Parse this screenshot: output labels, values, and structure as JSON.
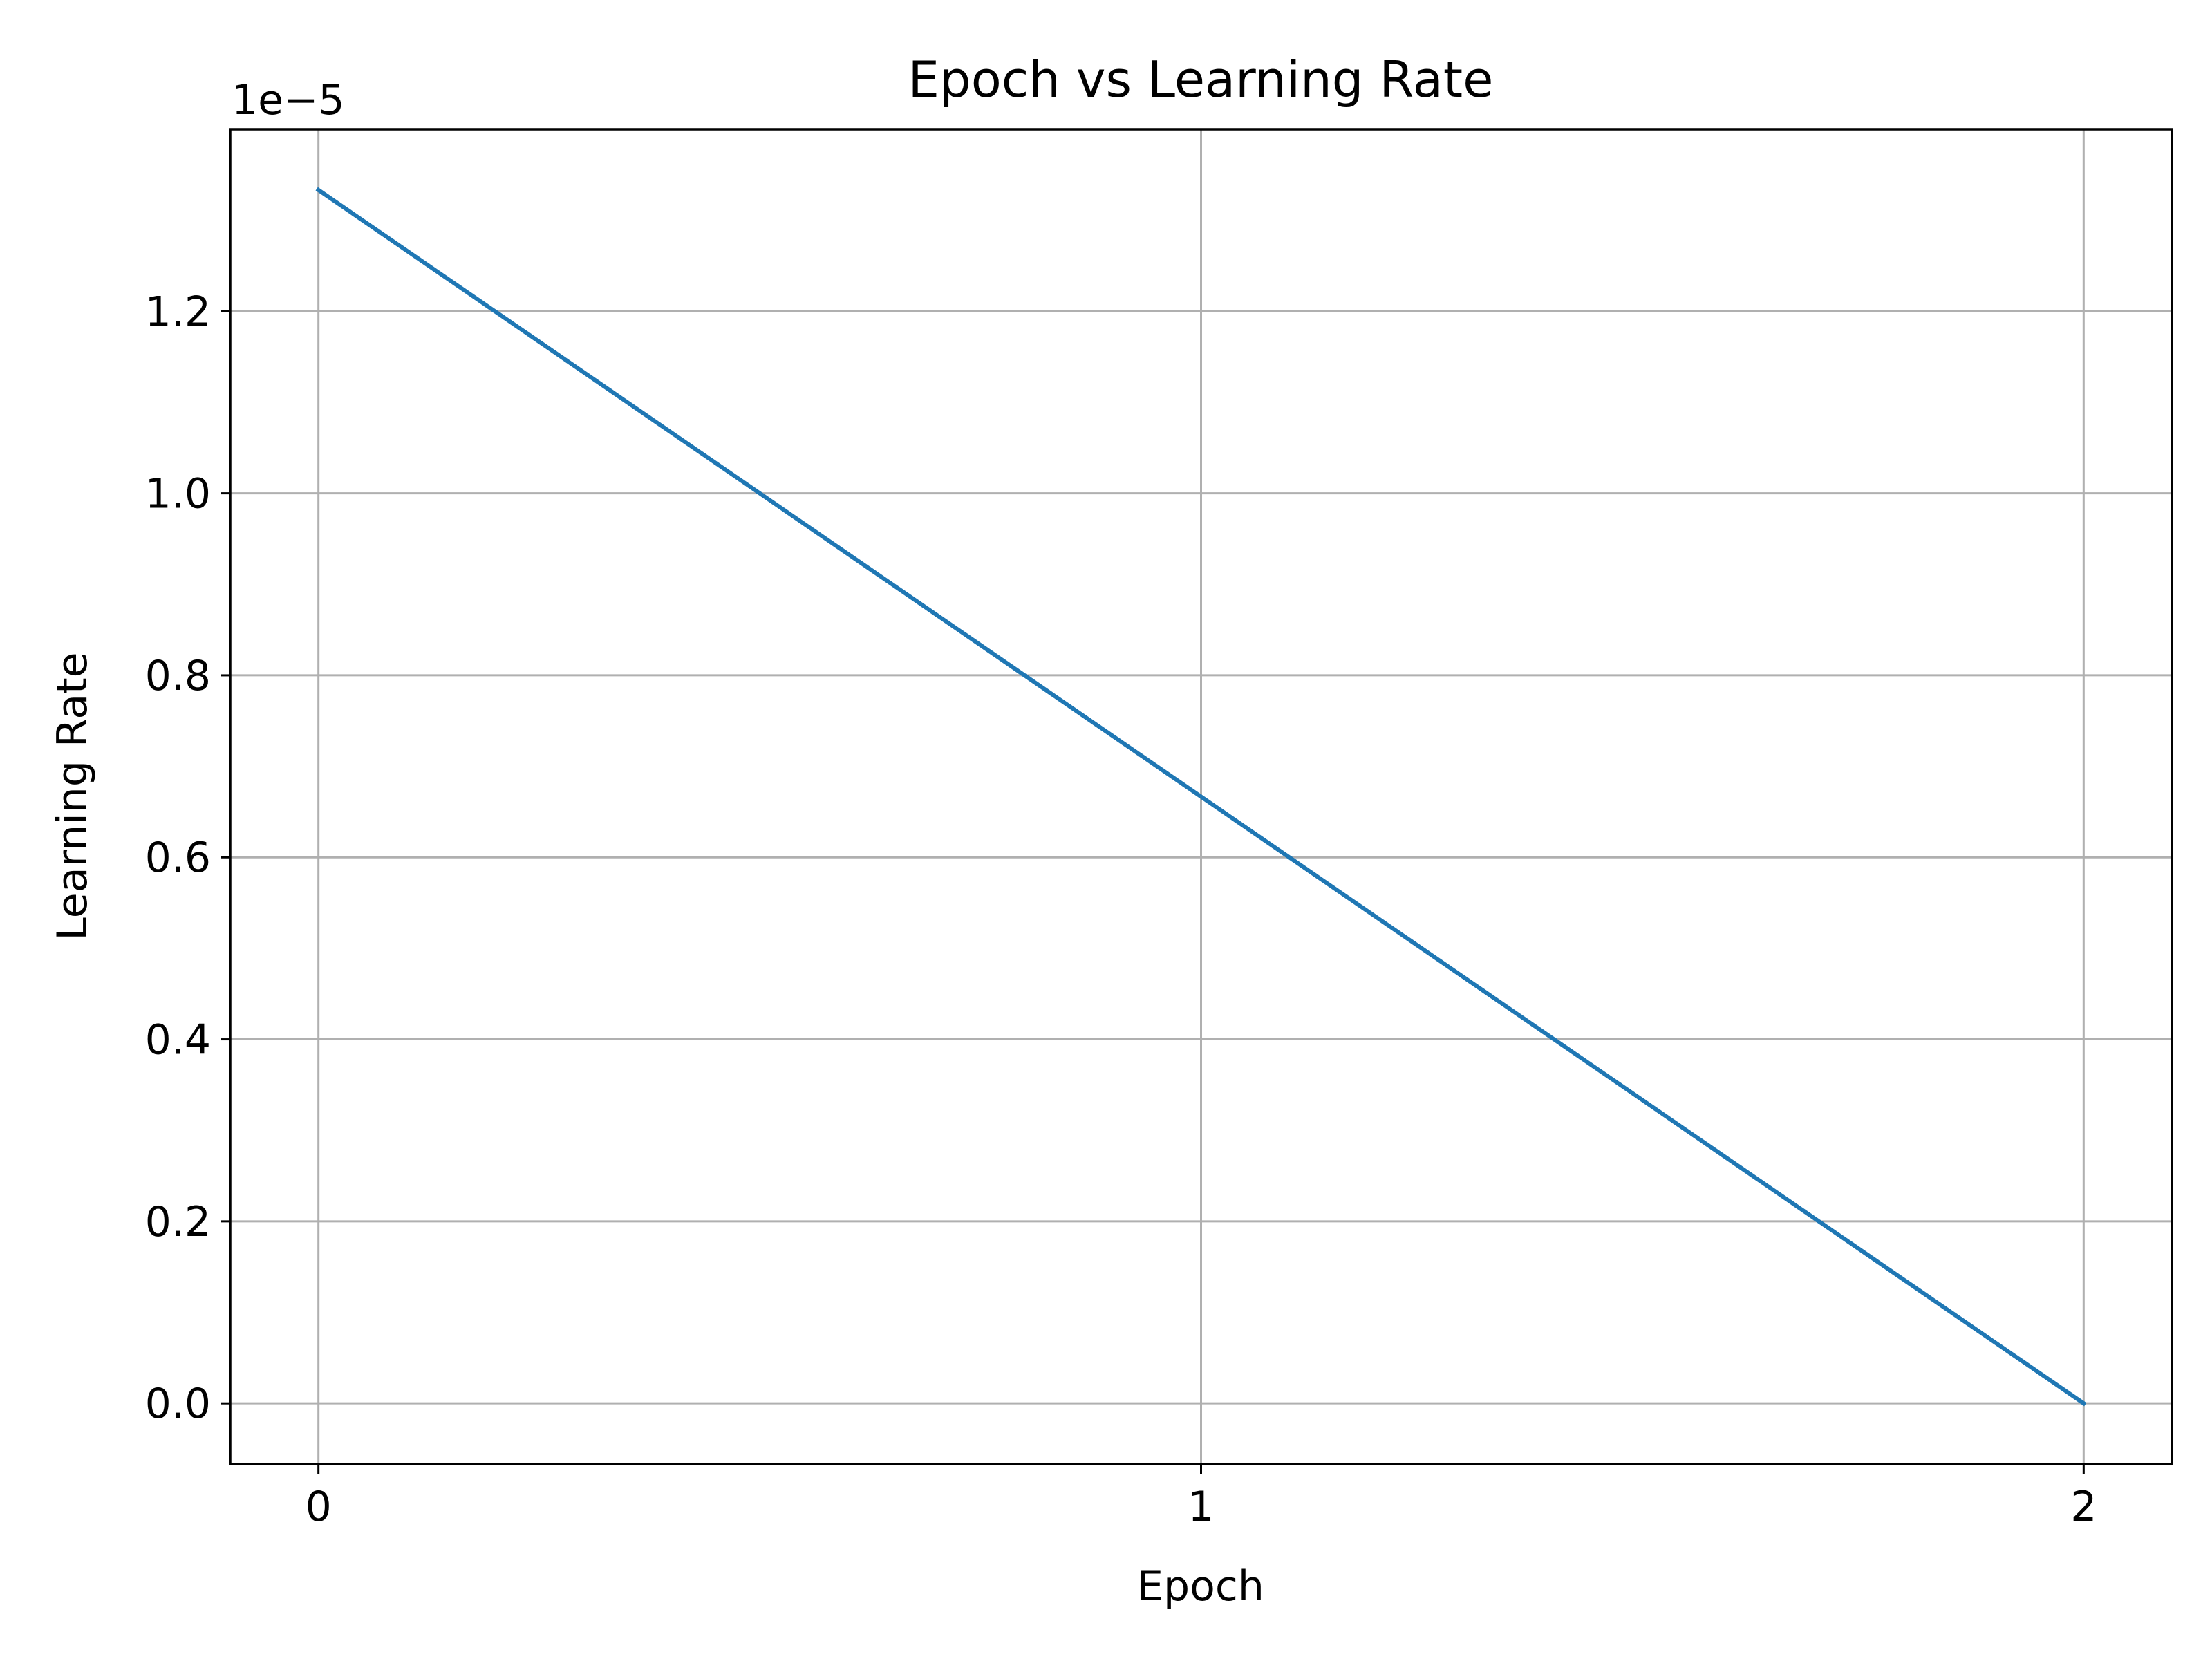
{
  "chart_data": {
    "type": "line",
    "title": "Epoch vs Learning Rate",
    "xlabel": "Epoch",
    "ylabel": "Learning Rate",
    "y_offset_label": "1e−5",
    "x": [
      0,
      2
    ],
    "series": [
      {
        "values": [
          1.3333e-05,
          0.0
        ],
        "color": "#1f77b4"
      }
    ],
    "xlim": [
      -0.1,
      2.1
    ],
    "ylim": [
      -6.67e-07,
      1.4e-05
    ],
    "x_ticks": [
      0,
      1,
      2
    ],
    "x_tick_labels": [
      "0",
      "1",
      "2"
    ],
    "y_ticks": [
      0.0,
      2e-06,
      4e-06,
      6e-06,
      8e-06,
      1e-05,
      1.2e-05
    ],
    "y_tick_labels": [
      "0.0",
      "0.2",
      "0.4",
      "0.6",
      "0.8",
      "1.0",
      "1.2"
    ],
    "grid": true,
    "grid_color": "#b0b0b0",
    "axis_color": "#000000"
  }
}
